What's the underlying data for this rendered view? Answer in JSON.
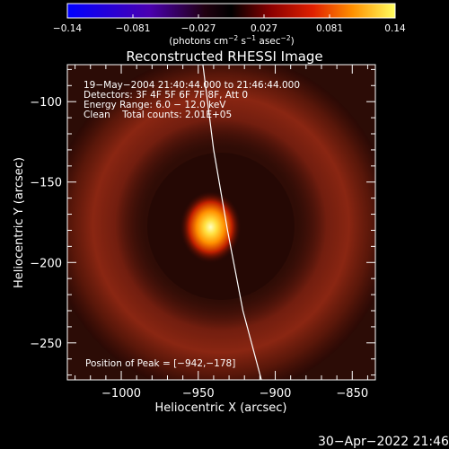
{
  "colorbar": {
    "ticks": [
      "−0.14",
      "−0.081",
      "−0.027",
      "0.027",
      "0.081",
      "0.14"
    ],
    "unit_label": "(photons cm",
    "unit_exp1": "−2",
    "unit_mid": " s",
    "unit_exp2": "−1",
    "unit_mid2": " asec",
    "unit_exp3": "−2",
    "unit_close": ")"
  },
  "chart_data": {
    "type": "heatmap",
    "title": "Reconstructed RHESSI Image",
    "xlabel": "Heliocentric X (arcsec)",
    "ylabel": "Heliocentric Y (arcsec)",
    "xlim": [
      -1035,
      -835
    ],
    "ylim": [
      -273,
      -77
    ],
    "x_ticks": [
      -1000,
      -950,
      -900,
      -850
    ],
    "y_ticks": [
      -100,
      -150,
      -200,
      -250
    ],
    "x_tick_labels": [
      "−1000",
      "−950",
      "−900",
      "−850"
    ],
    "y_tick_labels": [
      "−100",
      "−150",
      "−200",
      "−250"
    ],
    "colorbar_range": [
      -0.14,
      0.14
    ],
    "peak": {
      "x": -942,
      "y": -178
    },
    "limb_curve": [
      [
        -947,
        -77
      ],
      [
        -940,
        -130
      ],
      [
        -931,
        -180
      ],
      [
        -921,
        -230
      ],
      [
        -909,
        -273
      ]
    ],
    "annotations": [
      "19−May−2004 21:40:44.000 to 21:46:44.000",
      "Detectors: 3F 4F 5F 6F 7F 8F, Att 0",
      "Energy Range: 6.0 − 12.0 keV",
      "Clean    Total counts: 2.01E+05"
    ],
    "peak_label": "Position of Peak = [−942,−178]"
  },
  "timestamp": "30−Apr−2022 21:46"
}
